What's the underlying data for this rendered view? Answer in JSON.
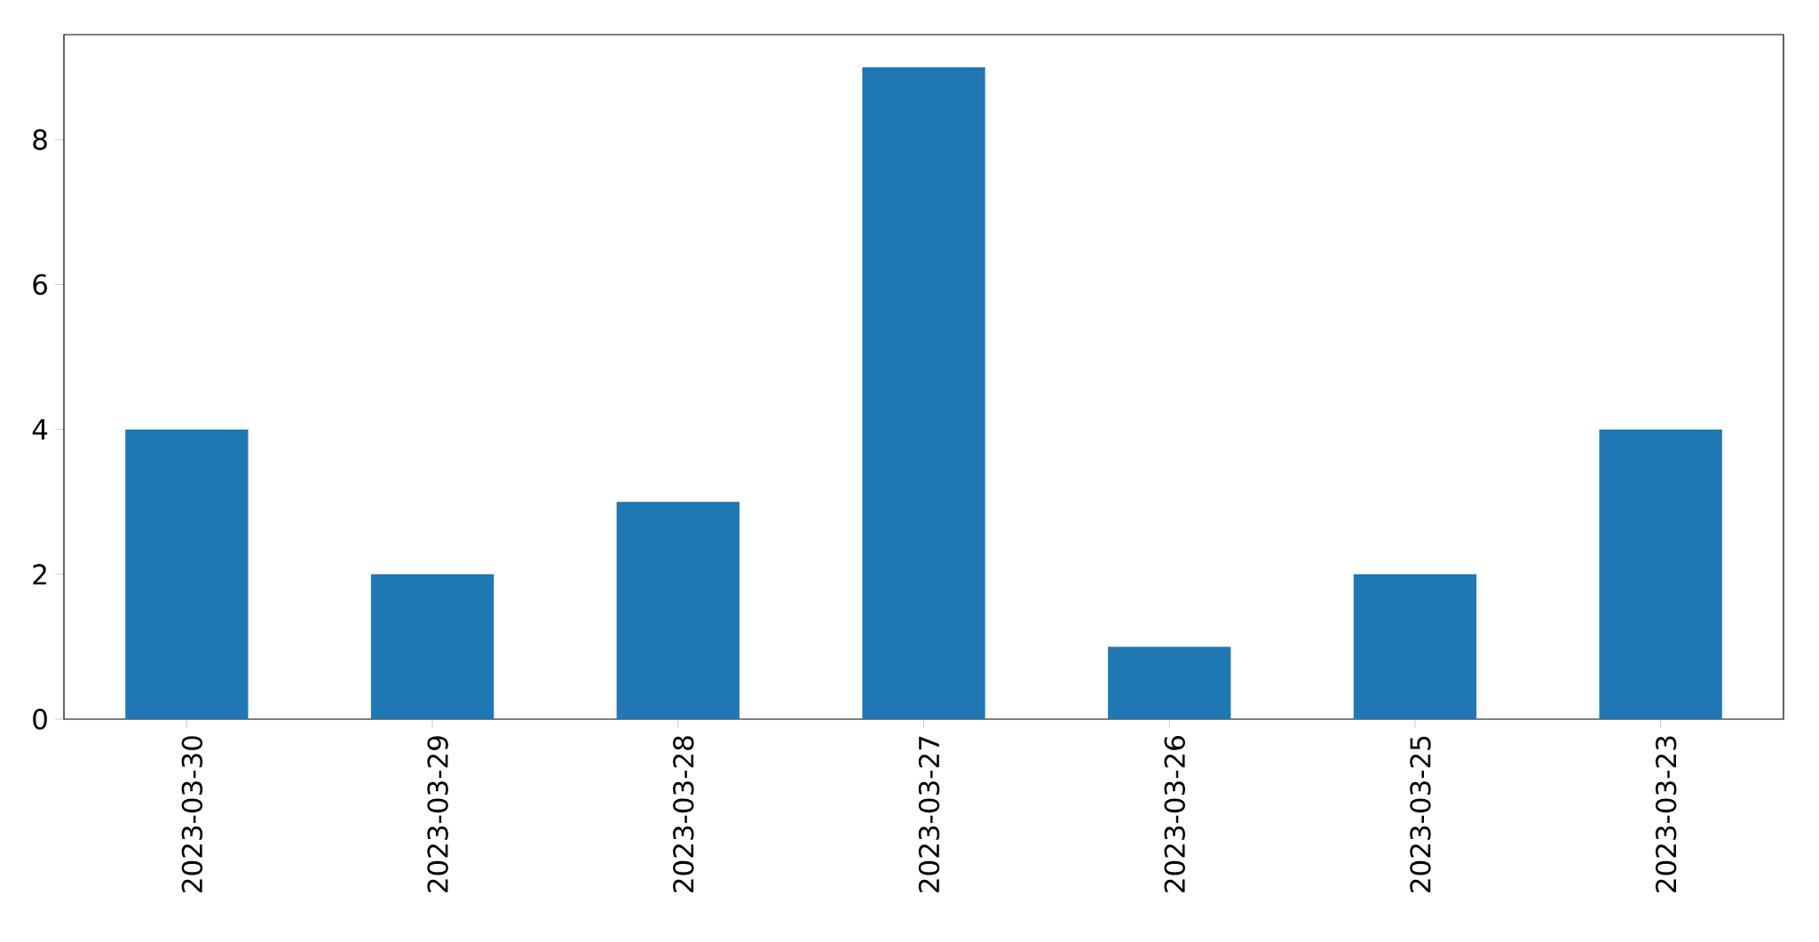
{
  "chart_data": {
    "type": "bar",
    "categories": [
      "2023-03-30",
      "2023-03-29",
      "2023-03-28",
      "2023-03-27",
      "2023-03-26",
      "2023-03-25",
      "2023-03-23"
    ],
    "values": [
      4,
      2,
      3,
      9,
      1,
      2,
      4
    ],
    "color": "#1f77b4",
    "ylim": [
      0,
      9.45
    ],
    "yticks": [
      0,
      2,
      4,
      6,
      8
    ],
    "grid": false
  }
}
